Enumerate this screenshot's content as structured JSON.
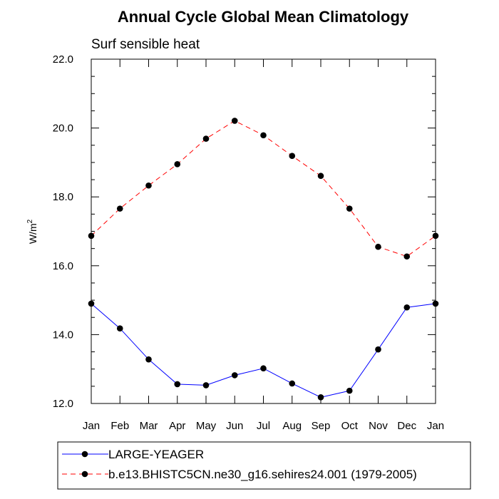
{
  "chart_data": {
    "type": "line",
    "title": "Annual Cycle Global Mean Climatology",
    "subtitle": "Surf sensible heat",
    "ylabel": "W/m",
    "ylabel_superscript": "2",
    "xlabel": "",
    "categories": [
      "Jan",
      "Feb",
      "Mar",
      "Apr",
      "May",
      "Jun",
      "Jul",
      "Aug",
      "Sep",
      "Oct",
      "Nov",
      "Dec",
      "Jan"
    ],
    "ylim": [
      12.0,
      22.0
    ],
    "yticks": [
      "12.0",
      "14.0",
      "16.0",
      "18.0",
      "20.0",
      "22.0"
    ],
    "grid": false,
    "legend_position": "bottom",
    "series": [
      {
        "name": "LARGE-YEAGER",
        "values": [
          14.9,
          14.18,
          13.28,
          12.56,
          12.53,
          12.82,
          13.02,
          12.58,
          12.18,
          12.37,
          13.57,
          14.79,
          14.9
        ],
        "color": "#0000ff",
        "line_style": "solid",
        "marker": "filled-circle"
      },
      {
        "name": "b.e13.BHISTC5CN.ne30_g16.sehires24.001 (1979-2005)",
        "values": [
          16.87,
          17.66,
          18.33,
          18.95,
          19.69,
          20.21,
          19.79,
          19.19,
          18.61,
          17.66,
          16.55,
          16.27,
          16.87
        ],
        "color": "#ff0000",
        "line_style": "dashed",
        "marker": "filled-circle"
      }
    ]
  }
}
